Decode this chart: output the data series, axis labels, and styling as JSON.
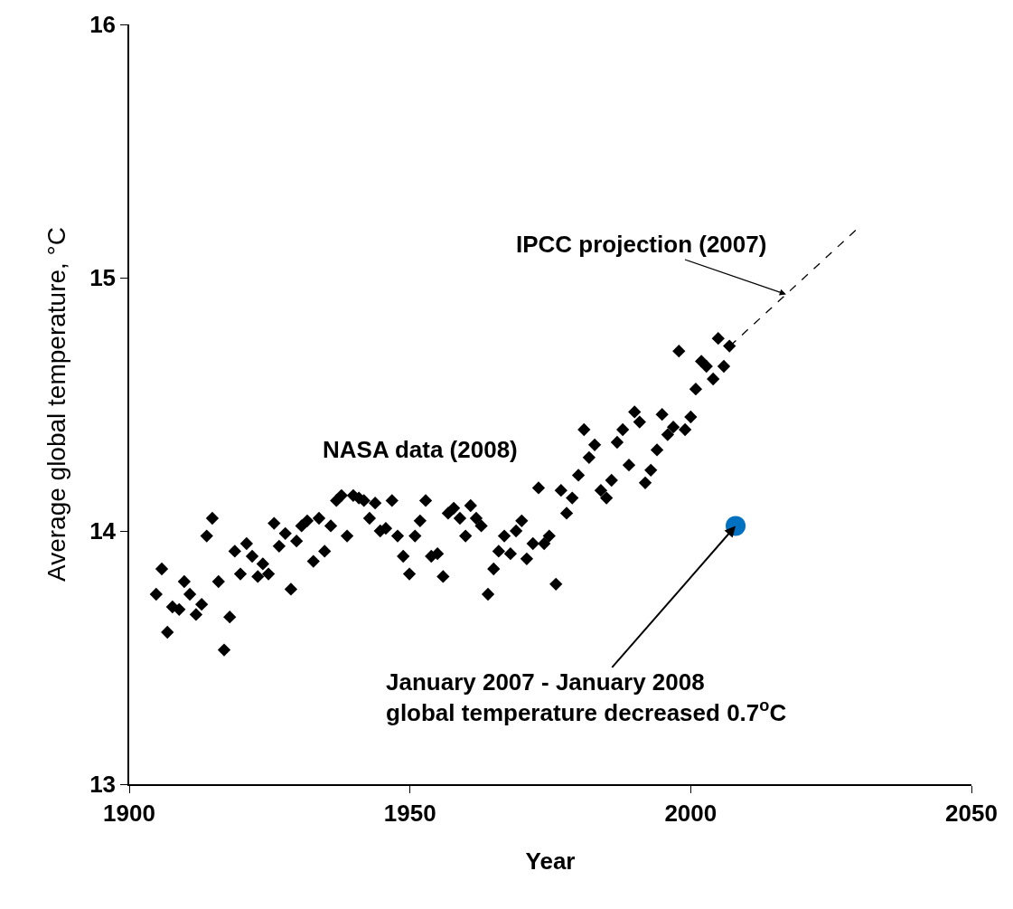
{
  "chart_data": {
    "type": "scatter",
    "xlabel": "Year",
    "ylabel": "Average global temperature, °C",
    "xlim": [
      1900,
      2050
    ],
    "xticks": [
      1900,
      1950,
      2000,
      2050
    ],
    "ylim": [
      13,
      16
    ],
    "yticks": [
      13,
      14,
      15,
      16
    ],
    "series": [
      {
        "color": "#000000",
        "marker": "diamond",
        "x": [
          1904.8,
          1905.8,
          1906.8,
          1907.7,
          1908.9,
          1909.8,
          1910.8,
          1911.9,
          1912.9,
          1913.8,
          1914.8,
          1915.9,
          1916.9,
          1917.9,
          1918.8,
          1919.8,
          1920.9,
          1921.9,
          1922.9,
          1923.8,
          1924.8,
          1925.8,
          1926.7,
          1927.8,
          1928.8,
          1929.8,
          1930.7,
          1931.7,
          1932.8,
          1933.8,
          1934.8,
          1935.9,
          1936.9,
          1937.8,
          1938.8,
          1939.9,
          1940.9,
          1941.8,
          1942.8,
          1943.8,
          1944.7,
          1945.7,
          1946.8,
          1947.8,
          1948.8,
          1949.9,
          1950.9,
          1951.8,
          1952.8,
          1953.8,
          1954.9,
          1955.9,
          1956.8,
          1957.8,
          1958.9,
          1959.9,
          1960.8,
          1961.8,
          1962.7,
          1963.9,
          1964.9,
          1965.8,
          1966.8,
          1967.9,
          1968.9,
          1969.9,
          1970.8,
          1971.9,
          1972.9,
          1973.9,
          1974.8,
          1976.0,
          1976.9,
          1977.9,
          1978.9,
          1980.0,
          1981.0,
          1981.9,
          1982.9,
          1984.0,
          1985.0,
          1985.9,
          1986.9,
          1987.9,
          1989.0,
          1990.0,
          1990.9,
          1991.9,
          1992.9,
          1994.0,
          1994.9,
          1995.9,
          1996.9,
          1997.9,
          1999.0,
          2000.0,
          2000.9,
          2001.9,
          2002.8,
          2004.0,
          2004.9,
          2005.9,
          2006.9
        ],
        "values": [
          13.75,
          13.85,
          13.6,
          13.7,
          13.69,
          13.8,
          13.75,
          13.67,
          13.71,
          13.98,
          14.05,
          13.8,
          13.53,
          13.66,
          13.92,
          13.83,
          13.95,
          13.9,
          13.82,
          13.87,
          13.83,
          14.03,
          13.94,
          13.99,
          13.77,
          13.96,
          14.02,
          14.04,
          13.88,
          14.05,
          13.92,
          14.02,
          14.12,
          14.14,
          13.98,
          14.14,
          14.13,
          14.12,
          14.05,
          14.11,
          14.0,
          14.01,
          14.12,
          13.98,
          13.9,
          13.83,
          13.98,
          14.04,
          14.12,
          13.9,
          13.91,
          13.82,
          14.07,
          14.09,
          14.05,
          13.98,
          14.1,
          14.05,
          14.02,
          13.75,
          13.85,
          13.92,
          13.98,
          13.91,
          14.0,
          14.04,
          13.89,
          13.95,
          14.17,
          13.95,
          13.98,
          13.79,
          14.16,
          14.07,
          14.13,
          14.22,
          14.4,
          14.29,
          14.34,
          14.16,
          14.13,
          14.2,
          14.35,
          14.4,
          14.26,
          14.47,
          14.43,
          14.19,
          14.24,
          14.32,
          14.46,
          14.38,
          14.41,
          14.71,
          14.4,
          14.45,
          14.56,
          14.67,
          14.65,
          14.6,
          14.76,
          14.65,
          14.73
        ]
      },
      {
        "type": "line",
        "color": "#000000",
        "marker": "none",
        "line_style": "dashed",
        "x": [
          2007,
          2030
        ],
        "values": [
          14.73,
          15.2
        ]
      },
      {
        "color": "#0070c0",
        "marker": "circle",
        "x": [
          2008
        ],
        "values": [
          14.02
        ]
      }
    ],
    "annotations": [
      "NASA data (2008)",
      {
        "text": "IPCC projection (2007)",
        "x": 2017,
        "y": 14.934
      },
      {
        "text": "January 2007 - January 2008\nglobal temperature decreased 0.7$^{o}$C",
        "x": 2008,
        "y": 14.02
      }
    ]
  }
}
